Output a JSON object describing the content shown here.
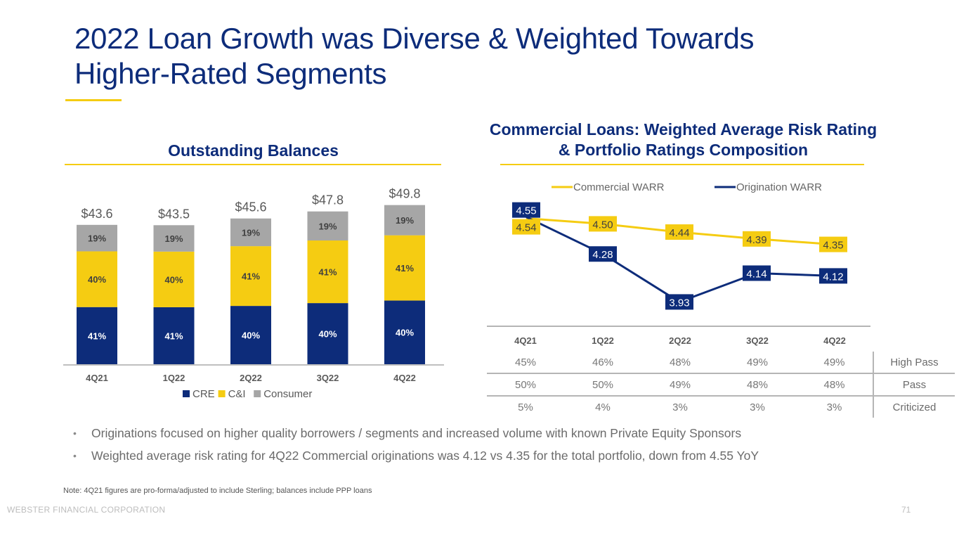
{
  "slide": {
    "title_line1": "2022 Loan Growth was Diverse & Weighted Towards",
    "title_line2": "Higher-Rated Segments",
    "left_section_title": "Outstanding Balances",
    "right_section_title_line1": "Commercial Loans: Weighted Average Risk Rating",
    "right_section_title_line2": "& Portfolio Ratings Composition",
    "bullets": [
      "Originations focused on higher quality borrowers / segments and increased volume with known Private Equity Sponsors",
      "Weighted average risk rating for 4Q22 Commercial originations was 4.12 vs 4.35 for the total portfolio, down from 4.55 YoY"
    ],
    "bullet_glyph": "•",
    "note": "Note: 4Q21 figures are pro-forma/adjusted to include Sterling; balances include PPP loans",
    "footer_company": "WEBSTER FINANCIAL CORPORATION",
    "page_number": "71"
  },
  "colors": {
    "navy": "#0d2c7a",
    "yellow": "#f5cc12",
    "gray": "#a6a6a6",
    "text_gray": "#6b6b6b"
  },
  "chart_data": [
    {
      "type": "bar",
      "stacked": true,
      "title": "Outstanding Balances",
      "categories": [
        "4Q21",
        "1Q22",
        "2Q22",
        "3Q22",
        "4Q22"
      ],
      "totals": [
        43.6,
        43.5,
        45.6,
        47.8,
        49.8
      ],
      "total_labels": [
        "$43.6",
        "$43.5",
        "$45.6",
        "$47.8",
        "$49.8"
      ],
      "series": [
        {
          "name": "CRE",
          "color": "#0d2c7a",
          "values": [
            41,
            41,
            40,
            40,
            40
          ],
          "labels": [
            "41%",
            "41%",
            "40%",
            "40%",
            "40%"
          ]
        },
        {
          "name": "C&I",
          "color": "#f5cc12",
          "values": [
            40,
            40,
            41,
            41,
            41
          ],
          "labels": [
            "40%",
            "40%",
            "41%",
            "41%",
            "41%"
          ]
        },
        {
          "name": "Consumer",
          "color": "#a6a6a6",
          "values": [
            19,
            19,
            19,
            19,
            19
          ],
          "labels": [
            "19%",
            "19%",
            "19%",
            "19%",
            "19%"
          ]
        }
      ],
      "xlabel": "",
      "ylabel": "",
      "legend": "bottom",
      "ylim": [
        0,
        55
      ]
    },
    {
      "type": "line",
      "title": "Commercial Loans: Weighted Average Risk Rating & Portfolio Ratings Composition",
      "categories": [
        "4Q21",
        "1Q22",
        "2Q22",
        "3Q22",
        "4Q22"
      ],
      "series": [
        {
          "name": "Commercial WARR",
          "color": "#f5cc12",
          "values": [
            4.54,
            4.5,
            4.44,
            4.39,
            4.35
          ]
        },
        {
          "name": "Origination WARR",
          "color": "#0d2c7a",
          "values": [
            4.55,
            4.28,
            3.93,
            4.14,
            4.12
          ]
        }
      ],
      "legend": "top",
      "ylim": [
        3.85,
        4.62
      ],
      "grid": false
    },
    {
      "type": "table",
      "columns": [
        "4Q21",
        "1Q22",
        "2Q22",
        "3Q22",
        "4Q22"
      ],
      "rows": [
        {
          "label": "High Pass",
          "values": [
            "45%",
            "46%",
            "48%",
            "49%",
            "49%"
          ]
        },
        {
          "label": "Pass",
          "values": [
            "50%",
            "50%",
            "49%",
            "48%",
            "48%"
          ]
        },
        {
          "label": "Criticized",
          "values": [
            "5%",
            "4%",
            "3%",
            "3%",
            "3%"
          ]
        }
      ]
    }
  ]
}
